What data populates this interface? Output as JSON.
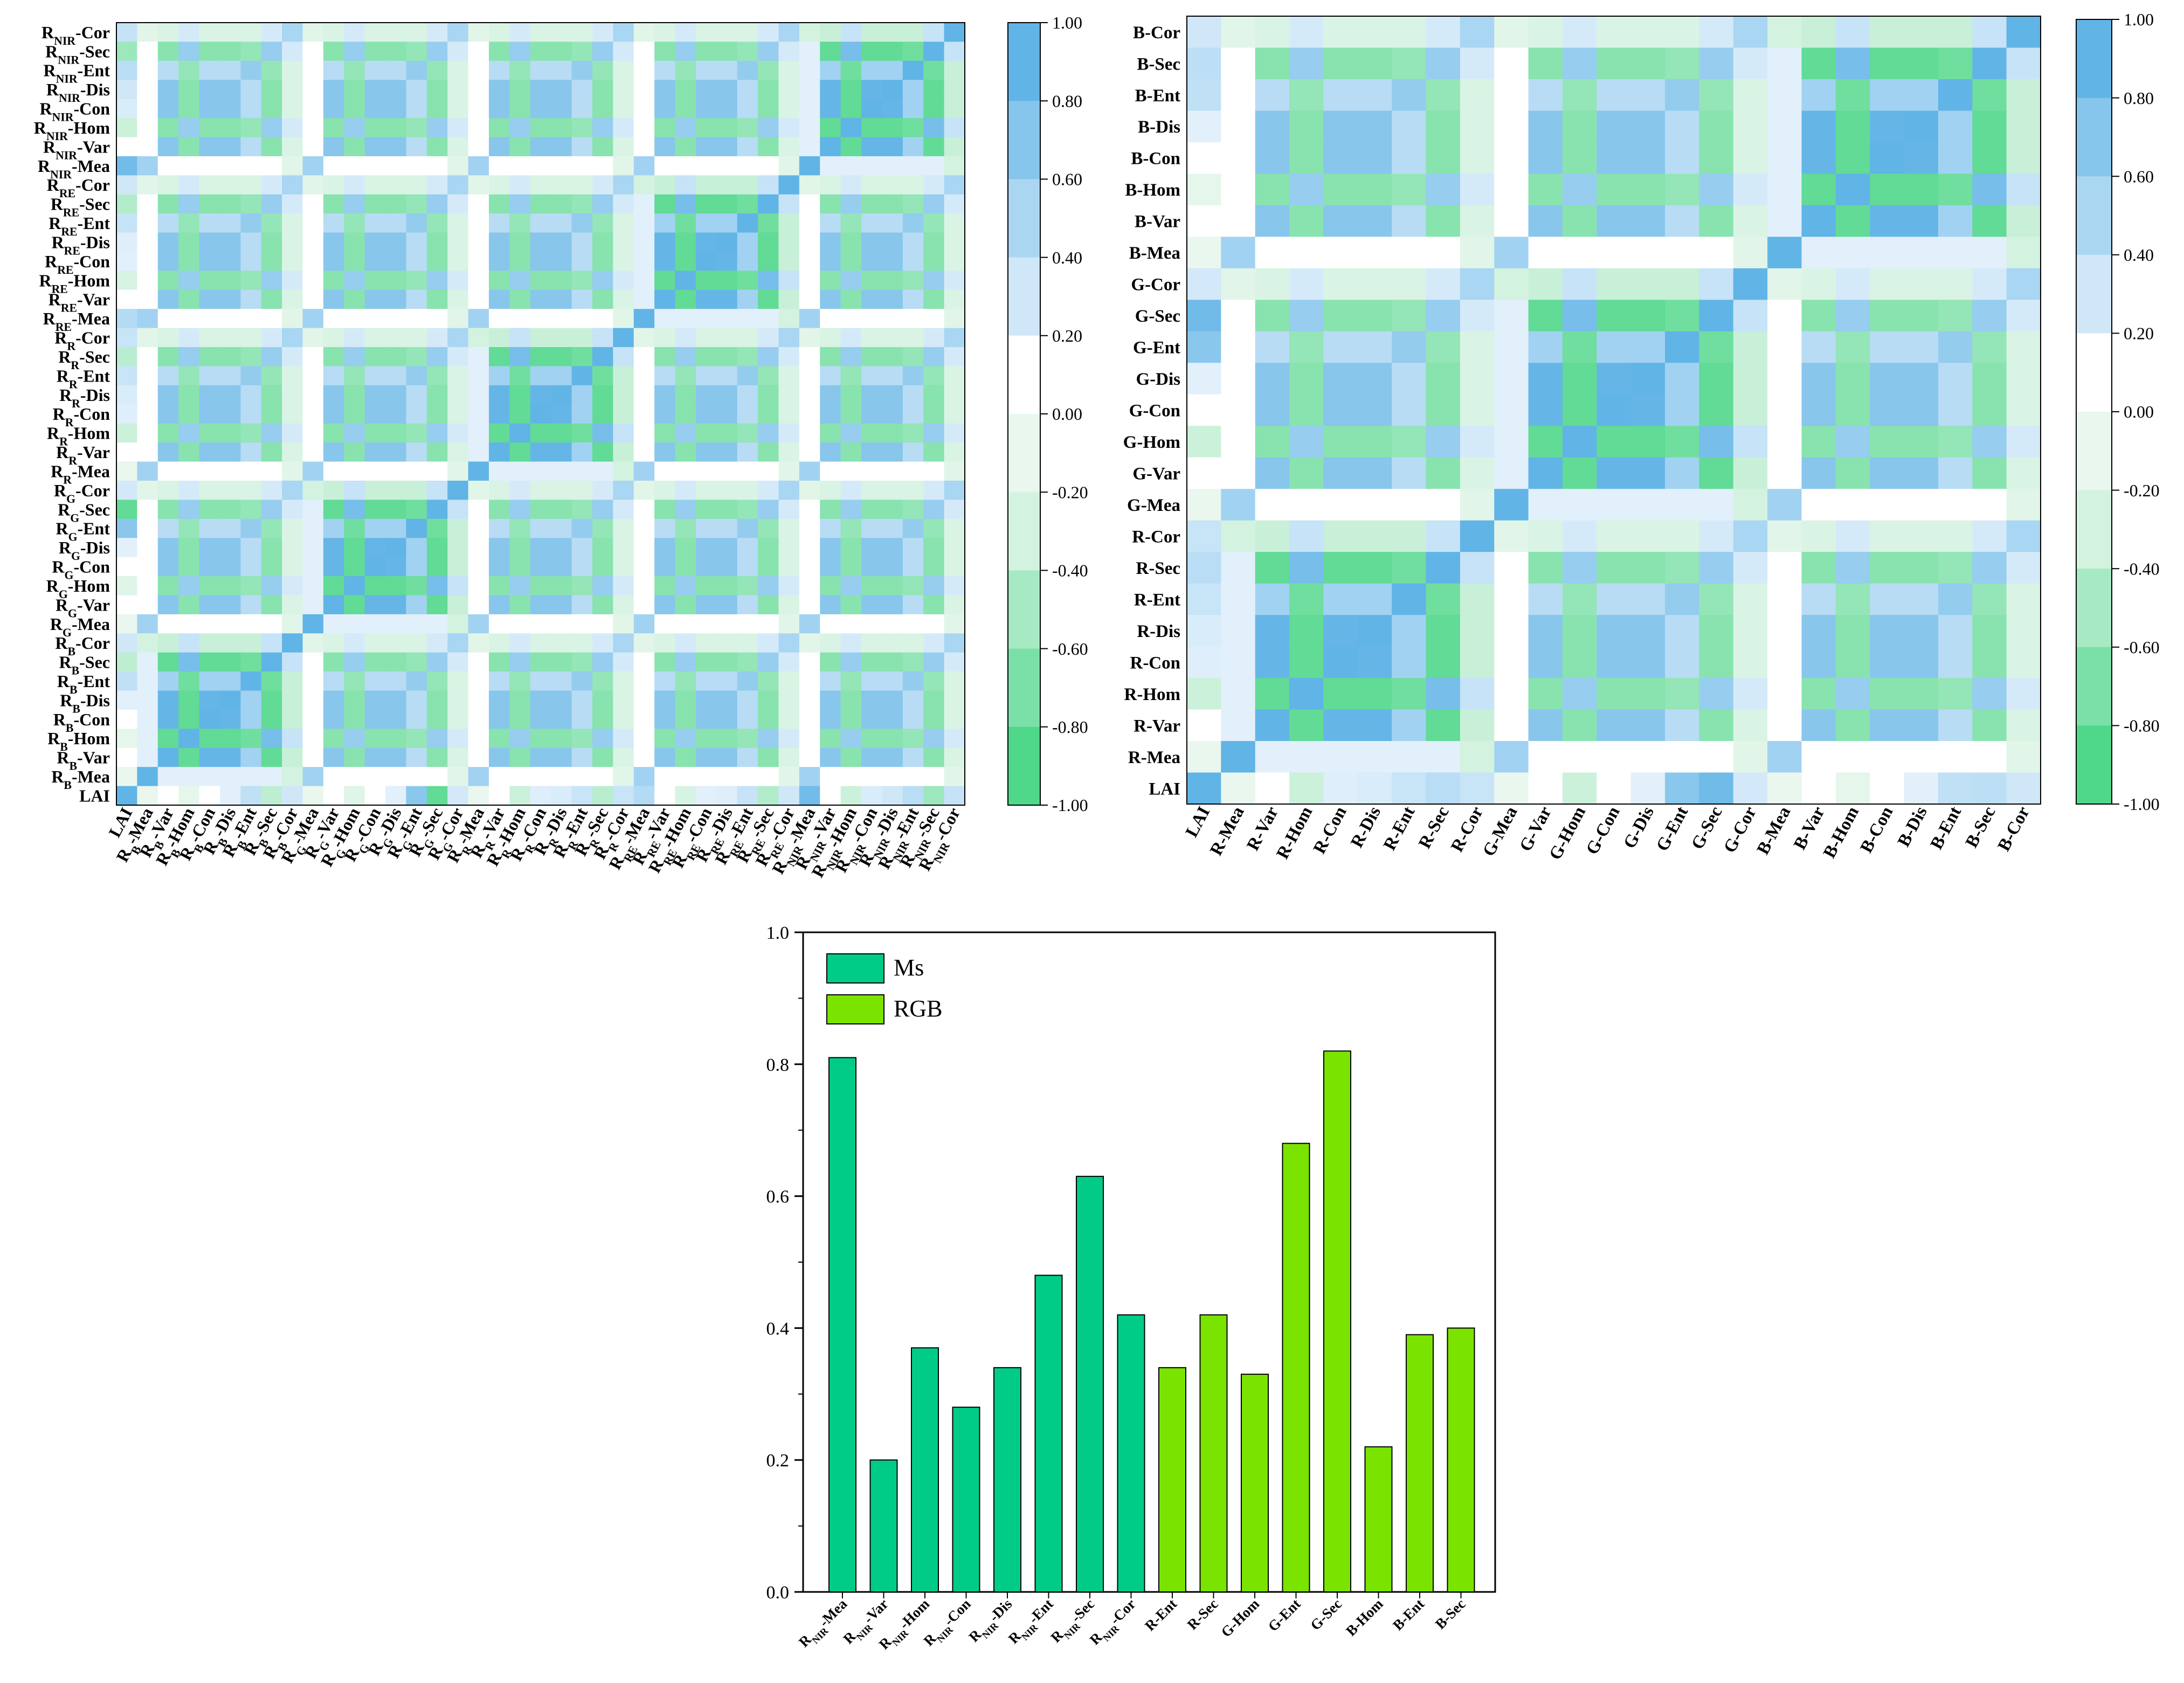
{
  "palette": {
    "neg_strong": "#4fd78a",
    "neg_weak": "#e9f7ee",
    "pos_weak": "#e2f0fb",
    "pos_strong": "#61b4e6",
    "ms_bar": "#00cc88",
    "rgb_bar": "#7be300",
    "axis": "#000000"
  },
  "colorbar": {
    "ticks": [
      "1.00",
      "0.80",
      "0.60",
      "0.40",
      "0.20",
      "0.00",
      "-0.20",
      "-0.40",
      "-0.60",
      "-0.80",
      "-1.00"
    ],
    "tick_values": [
      1.0,
      0.8,
      0.6,
      0.4,
      0.2,
      0.0,
      -0.2,
      -0.4,
      -0.6,
      -0.8,
      -1.0
    ]
  },
  "chart_data": [
    {
      "type": "heatmap",
      "title": "",
      "row_labels": [
        {
          "base": "R",
          "sub": "NIR",
          "suffix": "-Cor"
        },
        {
          "base": "R",
          "sub": "NIR",
          "suffix": "-Sec"
        },
        {
          "base": "R",
          "sub": "NIR",
          "suffix": "-Ent"
        },
        {
          "base": "R",
          "sub": "NIR",
          "suffix": "-Dis"
        },
        {
          "base": "R",
          "sub": "NIR",
          "suffix": "-Con"
        },
        {
          "base": "R",
          "sub": "NIR",
          "suffix": "-Hom"
        },
        {
          "base": "R",
          "sub": "NIR",
          "suffix": "-Var"
        },
        {
          "base": "R",
          "sub": "NIR",
          "suffix": "-Mea"
        },
        {
          "base": "R",
          "sub": "RE",
          "suffix": "-Cor"
        },
        {
          "base": "R",
          "sub": "RE",
          "suffix": "-Sec"
        },
        {
          "base": "R",
          "sub": "RE",
          "suffix": "-Ent"
        },
        {
          "base": "R",
          "sub": "RE",
          "suffix": "-Dis"
        },
        {
          "base": "R",
          "sub": "RE",
          "suffix": "-Con"
        },
        {
          "base": "R",
          "sub": "RE",
          "suffix": "-Hom"
        },
        {
          "base": "R",
          "sub": "RE",
          "suffix": "-Var"
        },
        {
          "base": "R",
          "sub": "RE",
          "suffix": "-Mea"
        },
        {
          "base": "R",
          "sub": "R",
          "suffix": "-Cor"
        },
        {
          "base": "R",
          "sub": "R",
          "suffix": "-Sec"
        },
        {
          "base": "R",
          "sub": "R",
          "suffix": "-Ent"
        },
        {
          "base": "R",
          "sub": "R",
          "suffix": "-Dis"
        },
        {
          "base": "R",
          "sub": "R",
          "suffix": "-Con"
        },
        {
          "base": "R",
          "sub": "R",
          "suffix": "-Hom"
        },
        {
          "base": "R",
          "sub": "R",
          "suffix": "-Var"
        },
        {
          "base": "R",
          "sub": "R",
          "suffix": "-Mea"
        },
        {
          "base": "R",
          "sub": "G",
          "suffix": "-Cor"
        },
        {
          "base": "R",
          "sub": "G",
          "suffix": "-Sec"
        },
        {
          "base": "R",
          "sub": "G",
          "suffix": "-Ent"
        },
        {
          "base": "R",
          "sub": "G",
          "suffix": "-Dis"
        },
        {
          "base": "R",
          "sub": "G",
          "suffix": "-Con"
        },
        {
          "base": "R",
          "sub": "G",
          "suffix": "-Hom"
        },
        {
          "base": "R",
          "sub": "G",
          "suffix": "-Var"
        },
        {
          "base": "R",
          "sub": "G",
          "suffix": "-Mea"
        },
        {
          "base": "R",
          "sub": "B",
          "suffix": "-Cor"
        },
        {
          "base": "R",
          "sub": "B",
          "suffix": "-Sec"
        },
        {
          "base": "R",
          "sub": "B",
          "suffix": "-Ent"
        },
        {
          "base": "R",
          "sub": "B",
          "suffix": "-Dis"
        },
        {
          "base": "R",
          "sub": "B",
          "suffix": "-Con"
        },
        {
          "base": "R",
          "sub": "B",
          "suffix": "-Hom"
        },
        {
          "base": "R",
          "sub": "B",
          "suffix": "-Var"
        },
        {
          "base": "R",
          "sub": "B",
          "suffix": "-Mea"
        },
        {
          "base": "LAI",
          "sub": "",
          "suffix": ""
        }
      ],
      "col_labels": [
        {
          "base": "LAI",
          "sub": "",
          "suffix": ""
        },
        {
          "base": "R",
          "sub": "B",
          "suffix": "-Mea"
        },
        {
          "base": "R",
          "sub": "B",
          "suffix": "-Var"
        },
        {
          "base": "R",
          "sub": "B",
          "suffix": "-Hom"
        },
        {
          "base": "R",
          "sub": "B",
          "suffix": "-Con"
        },
        {
          "base": "R",
          "sub": "B",
          "suffix": "-Dis"
        },
        {
          "base": "R",
          "sub": "B",
          "suffix": "-Ent"
        },
        {
          "base": "R",
          "sub": "B",
          "suffix": "-Sec"
        },
        {
          "base": "R",
          "sub": "B",
          "suffix": "-Cor"
        },
        {
          "base": "R",
          "sub": "G",
          "suffix": "-Mea"
        },
        {
          "base": "R",
          "sub": "G",
          "suffix": "-Var"
        },
        {
          "base": "R",
          "sub": "G",
          "suffix": "-Hom"
        },
        {
          "base": "R",
          "sub": "G",
          "suffix": "-Con"
        },
        {
          "base": "R",
          "sub": "G",
          "suffix": "-Dis"
        },
        {
          "base": "R",
          "sub": "G",
          "suffix": "-Ent"
        },
        {
          "base": "R",
          "sub": "G",
          "suffix": "-Sec"
        },
        {
          "base": "R",
          "sub": "G",
          "suffix": "-Cor"
        },
        {
          "base": "R",
          "sub": "R",
          "suffix": "-Mea"
        },
        {
          "base": "R",
          "sub": "R",
          "suffix": "-Var"
        },
        {
          "base": "R",
          "sub": "R",
          "suffix": "-Hom"
        },
        {
          "base": "R",
          "sub": "R",
          "suffix": "-Con"
        },
        {
          "base": "R",
          "sub": "R",
          "suffix": "-Dis"
        },
        {
          "base": "R",
          "sub": "R",
          "suffix": "-Ent"
        },
        {
          "base": "R",
          "sub": "R",
          "suffix": "-Sec"
        },
        {
          "base": "R",
          "sub": "R",
          "suffix": "-Cor"
        },
        {
          "base": "R",
          "sub": "RE",
          "suffix": "-Mea"
        },
        {
          "base": "R",
          "sub": "RE",
          "suffix": "-Var"
        },
        {
          "base": "R",
          "sub": "RE",
          "suffix": "-Hom"
        },
        {
          "base": "R",
          "sub": "RE",
          "suffix": "-Con"
        },
        {
          "base": "R",
          "sub": "RE",
          "suffix": "-Dis"
        },
        {
          "base": "R",
          "sub": "RE",
          "suffix": "-Ent"
        },
        {
          "base": "R",
          "sub": "RE",
          "suffix": "-Sec"
        },
        {
          "base": "R",
          "sub": "RE",
          "suffix": "-Cor"
        },
        {
          "base": "R",
          "sub": "NIR",
          "suffix": "-Mea"
        },
        {
          "base": "R",
          "sub": "NIR",
          "suffix": "-Var"
        },
        {
          "base": "R",
          "sub": "NIR",
          "suffix": "-Hom"
        },
        {
          "base": "R",
          "sub": "NIR",
          "suffix": "-Con"
        },
        {
          "base": "R",
          "sub": "NIR",
          "suffix": "-Dis"
        },
        {
          "base": "R",
          "sub": "NIR",
          "suffix": "-Ent"
        },
        {
          "base": "R",
          "sub": "NIR",
          "suffix": "-Sec"
        },
        {
          "base": "R",
          "sub": "NIR",
          "suffix": "-Cor"
        }
      ],
      "features_top_to_bottom": [
        "NIR-Cor",
        "NIR-Sec",
        "NIR-Ent",
        "NIR-Dis",
        "NIR-Con",
        "NIR-Hom",
        "NIR-Var",
        "NIR-Mea",
        "RE-Cor",
        "RE-Sec",
        "RE-Ent",
        "RE-Dis",
        "RE-Con",
        "RE-Hom",
        "RE-Var",
        "RE-Mea",
        "R-Cor",
        "R-Sec",
        "R-Ent",
        "R-Dis",
        "R-Con",
        "R-Hom",
        "R-Var",
        "R-Mea",
        "G-Cor",
        "G-Sec",
        "G-Ent",
        "G-Dis",
        "G-Con",
        "G-Hom",
        "G-Var",
        "G-Mea",
        "B-Cor",
        "B-Sec",
        "B-Ent",
        "B-Dis",
        "B-Con",
        "B-Hom",
        "B-Var",
        "B-Mea",
        "LAI"
      ],
      "lai_correlations": {
        "NIR-Cor": 0.36,
        "NIR-Sec": -0.55,
        "NIR-Ent": 0.42,
        "NIR-Dis": 0.3,
        "NIR-Con": 0.25,
        "NIR-Hom": -0.33,
        "NIR-Var": 0.18,
        "NIR-Mea": 0.81,
        "RE-Cor": 0.3,
        "RE-Sec": -0.45,
        "RE-Ent": 0.35,
        "RE-Dis": 0.22,
        "RE-Con": 0.2,
        "RE-Hom": -0.28,
        "RE-Var": 0.15,
        "RE-Mea": 0.45,
        "R-Cor": 0.34,
        "R-Sec": -0.42,
        "R-Ent": 0.34,
        "R-Dis": 0.25,
        "R-Con": 0.22,
        "R-Hom": -0.33,
        "R-Var": 0.1,
        "R-Mea": -0.2,
        "G-Cor": 0.28,
        "G-Sec": -0.82,
        "G-Ent": 0.68,
        "G-Dis": 0.2,
        "G-Con": 0.18,
        "G-Hom": -0.25,
        "G-Var": 0.12,
        "G-Mea": -0.15,
        "B-Cor": 0.3,
        "B-Sec": -0.4,
        "B-Ent": 0.39,
        "B-Dis": 0.2,
        "B-Con": 0.18,
        "B-Hom": -0.22,
        "B-Var": 0.1,
        "B-Mea": -0.12
      },
      "colorbar_range": [
        -1.0,
        1.0
      ]
    },
    {
      "type": "heatmap",
      "title": "",
      "row_labels": [
        "B-Cor",
        "B-Sec",
        "B-Ent",
        "B-Dis",
        "B-Con",
        "B-Hom",
        "B-Var",
        "B-Mea",
        "G-Cor",
        "G-Sec",
        "G-Ent",
        "G-Dis",
        "G-Con",
        "G-Hom",
        "G-Var",
        "G-Mea",
        "R-Cor",
        "R-Sec",
        "R-Ent",
        "R-Dis",
        "R-Con",
        "R-Hom",
        "R-Var",
        "R-Mea",
        "LAI"
      ],
      "col_labels": [
        "LAI",
        "R-Mea",
        "R-Var",
        "R-Hom",
        "R-Con",
        "R-Dis",
        "R-Ent",
        "R-Sec",
        "R-Cor",
        "G-Mea",
        "G-Var",
        "G-Hom",
        "G-Con",
        "G-Dis",
        "G-Ent",
        "G-Sec",
        "G-Cor",
        "B-Mea",
        "B-Var",
        "B-Hom",
        "B-Con",
        "B-Dis",
        "B-Ent",
        "B-Sec",
        "B-Cor"
      ],
      "features_top_to_bottom": [
        "B-Cor",
        "B-Sec",
        "B-Ent",
        "B-Dis",
        "B-Con",
        "B-Hom",
        "B-Var",
        "B-Mea",
        "G-Cor",
        "G-Sec",
        "G-Ent",
        "G-Dis",
        "G-Con",
        "G-Hom",
        "G-Var",
        "G-Mea",
        "R-Cor",
        "R-Sec",
        "R-Ent",
        "R-Dis",
        "R-Con",
        "R-Hom",
        "R-Var",
        "R-Mea",
        "LAI"
      ],
      "lai_correlations": {
        "B-Cor": 0.3,
        "B-Sec": 0.4,
        "B-Ent": 0.39,
        "B-Dis": 0.2,
        "B-Con": 0.18,
        "B-Hom": -0.22,
        "B-Var": 0.1,
        "B-Mea": -0.12,
        "G-Cor": 0.28,
        "G-Sec": 0.82,
        "G-Ent": 0.68,
        "G-Dis": 0.2,
        "G-Con": 0.18,
        "G-Hom": -0.33,
        "G-Var": 0.12,
        "G-Mea": -0.15,
        "R-Cor": 0.34,
        "R-Sec": 0.42,
        "R-Ent": 0.34,
        "R-Dis": 0.25,
        "R-Con": 0.22,
        "R-Hom": -0.33,
        "R-Var": 0.1,
        "R-Mea": -0.2
      },
      "colorbar_range": [
        -1.0,
        1.0
      ]
    },
    {
      "type": "bar",
      "title": "",
      "xlabel": "",
      "ylabel": "",
      "ylim": [
        0.0,
        1.0
      ],
      "yticks": [
        "0.0",
        "0.2",
        "0.4",
        "0.6",
        "0.8",
        "1.0"
      ],
      "ytick_values": [
        0.0,
        0.2,
        0.4,
        0.6,
        0.8,
        1.0
      ],
      "legend_position": "top-left",
      "series": [
        {
          "name": "Ms",
          "color": "#00cc88"
        },
        {
          "name": "RGB",
          "color": "#7be300"
        }
      ],
      "categories": [
        {
          "base": "R",
          "sub": "NIR",
          "suffix": "-Mea",
          "series": "Ms",
          "value": 0.81
        },
        {
          "base": "R",
          "sub": "NIR",
          "suffix": "-Var",
          "series": "Ms",
          "value": 0.2
        },
        {
          "base": "R",
          "sub": "NIR",
          "suffix": "-Hom",
          "series": "Ms",
          "value": 0.37
        },
        {
          "base": "R",
          "sub": "NIR",
          "suffix": "-Con",
          "series": "Ms",
          "value": 0.28
        },
        {
          "base": "R",
          "sub": "NIR",
          "suffix": "-Dis",
          "series": "Ms",
          "value": 0.34
        },
        {
          "base": "R",
          "sub": "NIR",
          "suffix": "-Ent",
          "series": "Ms",
          "value": 0.48
        },
        {
          "base": "R",
          "sub": "NIR",
          "suffix": "-Sec",
          "series": "Ms",
          "value": 0.63
        },
        {
          "base": "R",
          "sub": "NIR",
          "suffix": "-Cor",
          "series": "Ms",
          "value": 0.42
        },
        {
          "base": "R-Ent",
          "sub": "",
          "suffix": "",
          "series": "RGB",
          "value": 0.34
        },
        {
          "base": "R-Sec",
          "sub": "",
          "suffix": "",
          "series": "RGB",
          "value": 0.42
        },
        {
          "base": "G-Hom",
          "sub": "",
          "suffix": "",
          "series": "RGB",
          "value": 0.33
        },
        {
          "base": "G-Ent",
          "sub": "",
          "suffix": "",
          "series": "RGB",
          "value": 0.68
        },
        {
          "base": "G-Sec",
          "sub": "",
          "suffix": "",
          "series": "RGB",
          "value": 0.82
        },
        {
          "base": "B-Hom",
          "sub": "",
          "suffix": "",
          "series": "RGB",
          "value": 0.22
        },
        {
          "base": "B-Ent",
          "sub": "",
          "suffix": "",
          "series": "RGB",
          "value": 0.39
        },
        {
          "base": "B-Sec",
          "sub": "",
          "suffix": "",
          "series": "RGB",
          "value": 0.4
        }
      ]
    }
  ]
}
